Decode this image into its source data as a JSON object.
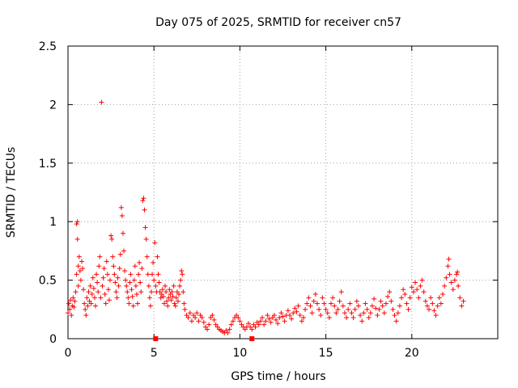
{
  "chart_data": {
    "type": "scatter",
    "title": "Day 075 of 2025, SRMTID for receiver cn57",
    "xlabel": "GPS time / hours",
    "ylabel": "SRMTID / TECUs",
    "xlim": [
      0,
      25
    ],
    "ylim": [
      0,
      2.5
    ],
    "xticks": [
      0,
      5,
      10,
      15,
      20
    ],
    "xtick_labels": [
      "0",
      "5",
      "10",
      "15",
      "20"
    ],
    "yticks": [
      0,
      0.5,
      1,
      1.5,
      2,
      2.5
    ],
    "ytick_labels": [
      "0",
      "0.5",
      "1",
      "1.5",
      "2",
      "2.5"
    ],
    "grid": true,
    "marker": "plus",
    "series_color": "#ff0000",
    "series": [
      {
        "name": "SRMTID",
        "points": [
          [
            0.0,
            0.22
          ],
          [
            0.05,
            0.3
          ],
          [
            0.1,
            0.25
          ],
          [
            0.15,
            0.33
          ],
          [
            0.2,
            0.2
          ],
          [
            0.25,
            0.28
          ],
          [
            0.3,
            0.35
          ],
          [
            0.35,
            0.27
          ],
          [
            0.4,
            0.32
          ],
          [
            0.45,
            0.4
          ],
          [
            0.5,
            0.55
          ],
          [
            0.5,
            0.98
          ],
          [
            0.55,
            1.0
          ],
          [
            0.55,
            0.85
          ],
          [
            0.6,
            0.62
          ],
          [
            0.6,
            0.45
          ],
          [
            0.65,
            0.7
          ],
          [
            0.7,
            0.58
          ],
          [
            0.75,
            0.5
          ],
          [
            0.8,
            0.66
          ],
          [
            0.85,
            0.6
          ],
          [
            0.9,
            0.42
          ],
          [
            0.95,
            0.3
          ],
          [
            1.0,
            0.25
          ],
          [
            1.05,
            0.2
          ],
          [
            1.1,
            0.35
          ],
          [
            1.15,
            0.28
          ],
          [
            1.2,
            0.4
          ],
          [
            1.25,
            0.32
          ],
          [
            1.3,
            0.45
          ],
          [
            1.35,
            0.3
          ],
          [
            1.4,
            0.38
          ],
          [
            1.45,
            0.52
          ],
          [
            1.5,
            0.43
          ],
          [
            1.55,
            0.35
          ],
          [
            1.6,
            0.28
          ],
          [
            1.65,
            0.55
          ],
          [
            1.7,
            0.48
          ],
          [
            1.75,
            0.4
          ],
          [
            1.8,
            0.62
          ],
          [
            1.85,
            0.7
          ],
          [
            1.9,
            0.35
          ],
          [
            1.95,
            2.02
          ],
          [
            2.0,
            0.45
          ],
          [
            2.05,
            0.52
          ],
          [
            2.1,
            0.6
          ],
          [
            2.15,
            0.38
          ],
          [
            2.2,
            0.3
          ],
          [
            2.25,
            0.66
          ],
          [
            2.3,
            0.55
          ],
          [
            2.35,
            0.42
          ],
          [
            2.4,
            0.33
          ],
          [
            2.45,
            0.5
          ],
          [
            2.5,
            0.88
          ],
          [
            2.55,
            0.85
          ],
          [
            2.6,
            0.7
          ],
          [
            2.65,
            0.62
          ],
          [
            2.7,
            0.55
          ],
          [
            2.75,
            0.48
          ],
          [
            2.8,
            0.4
          ],
          [
            2.85,
            0.35
          ],
          [
            2.9,
            0.52
          ],
          [
            2.95,
            0.45
          ],
          [
            3.0,
            0.6
          ],
          [
            3.05,
            0.72
          ],
          [
            3.1,
            1.12
          ],
          [
            3.15,
            1.05
          ],
          [
            3.2,
            0.9
          ],
          [
            3.25,
            0.75
          ],
          [
            3.3,
            0.58
          ],
          [
            3.35,
            0.5
          ],
          [
            3.4,
            0.45
          ],
          [
            3.45,
            0.4
          ],
          [
            3.5,
            0.35
          ],
          [
            3.55,
            0.3
          ],
          [
            3.6,
            0.48
          ],
          [
            3.65,
            0.55
          ],
          [
            3.7,
            0.42
          ],
          [
            3.75,
            0.36
          ],
          [
            3.8,
            0.28
          ],
          [
            3.85,
            0.5
          ],
          [
            3.9,
            0.62
          ],
          [
            3.95,
            0.45
          ],
          [
            4.0,
            0.38
          ],
          [
            4.05,
            0.3
          ],
          [
            4.1,
            0.55
          ],
          [
            4.15,
            0.65
          ],
          [
            4.2,
            0.48
          ],
          [
            4.25,
            0.4
          ],
          [
            4.3,
            0.6
          ],
          [
            4.35,
            1.18
          ],
          [
            4.4,
            1.2
          ],
          [
            4.45,
            1.1
          ],
          [
            4.5,
            0.95
          ],
          [
            4.55,
            0.85
          ],
          [
            4.6,
            0.7
          ],
          [
            4.65,
            0.55
          ],
          [
            4.7,
            0.45
          ],
          [
            4.75,
            0.35
          ],
          [
            4.8,
            0.28
          ],
          [
            4.85,
            0.4
          ],
          [
            4.9,
            0.55
          ],
          [
            4.95,
            0.65
          ],
          [
            5.0,
            0.5
          ],
          [
            5.05,
            0.82
          ],
          [
            5.1,
            0.45
          ],
          [
            5.15,
            0.4
          ],
          [
            5.2,
            0.7
          ],
          [
            5.25,
            0.55
          ],
          [
            5.3,
            0.48
          ],
          [
            5.35,
            0.4
          ],
          [
            5.4,
            0.35
          ],
          [
            5.45,
            0.38
          ],
          [
            5.5,
            0.42
          ],
          [
            5.55,
            0.36
          ],
          [
            5.6,
            0.3
          ],
          [
            5.65,
            0.45
          ],
          [
            5.7,
            0.4
          ],
          [
            5.75,
            0.32
          ],
          [
            5.8,
            0.28
          ],
          [
            5.85,
            0.35
          ],
          [
            5.9,
            0.42
          ],
          [
            5.95,
            0.38
          ],
          [
            6.0,
            0.33
          ],
          [
            6.05,
            0.4
          ],
          [
            6.1,
            0.36
          ],
          [
            6.15,
            0.45
          ],
          [
            6.2,
            0.3
          ],
          [
            6.25,
            0.28
          ],
          [
            6.3,
            0.35
          ],
          [
            6.35,
            0.4
          ],
          [
            6.4,
            0.32
          ],
          [
            6.45,
            0.38
          ],
          [
            6.5,
            0.45
          ],
          [
            6.55,
            0.5
          ],
          [
            6.6,
            0.58
          ],
          [
            6.65,
            0.55
          ],
          [
            6.7,
            0.4
          ],
          [
            6.75,
            0.3
          ],
          [
            6.8,
            0.25
          ],
          [
            6.9,
            0.2
          ],
          [
            7.0,
            0.18
          ],
          [
            7.1,
            0.22
          ],
          [
            7.2,
            0.15
          ],
          [
            7.3,
            0.2
          ],
          [
            7.4,
            0.18
          ],
          [
            7.5,
            0.22
          ],
          [
            7.6,
            0.15
          ],
          [
            7.7,
            0.2
          ],
          [
            7.8,
            0.18
          ],
          [
            7.9,
            0.14
          ],
          [
            8.0,
            0.1
          ],
          [
            8.1,
            0.08
          ],
          [
            8.2,
            0.12
          ],
          [
            8.3,
            0.18
          ],
          [
            8.4,
            0.2
          ],
          [
            8.5,
            0.16
          ],
          [
            8.6,
            0.12
          ],
          [
            8.7,
            0.1
          ],
          [
            8.8,
            0.08
          ],
          [
            8.9,
            0.07
          ],
          [
            9.0,
            0.06
          ],
          [
            9.1,
            0.05
          ],
          [
            9.2,
            0.07
          ],
          [
            9.3,
            0.05
          ],
          [
            9.4,
            0.08
          ],
          [
            9.5,
            0.12
          ],
          [
            9.6,
            0.15
          ],
          [
            9.7,
            0.18
          ],
          [
            9.8,
            0.2
          ],
          [
            9.9,
            0.18
          ],
          [
            10.0,
            0.15
          ],
          [
            10.1,
            0.12
          ],
          [
            10.2,
            0.1
          ],
          [
            10.3,
            0.08
          ],
          [
            10.4,
            0.1
          ],
          [
            10.5,
            0.13
          ],
          [
            10.6,
            0.1
          ],
          [
            10.7,
            0.08
          ],
          [
            10.8,
            0.12
          ],
          [
            10.9,
            0.1
          ],
          [
            11.0,
            0.14
          ],
          [
            11.1,
            0.12
          ],
          [
            11.2,
            0.15
          ],
          [
            11.3,
            0.18
          ],
          [
            11.4,
            0.12
          ],
          [
            11.5,
            0.15
          ],
          [
            11.6,
            0.2
          ],
          [
            11.7,
            0.17
          ],
          [
            11.8,
            0.14
          ],
          [
            11.9,
            0.18
          ],
          [
            12.0,
            0.2
          ],
          [
            12.1,
            0.16
          ],
          [
            12.2,
            0.13
          ],
          [
            12.3,
            0.18
          ],
          [
            12.4,
            0.22
          ],
          [
            12.5,
            0.19
          ],
          [
            12.6,
            0.15
          ],
          [
            12.7,
            0.2
          ],
          [
            12.8,
            0.24
          ],
          [
            12.9,
            0.2
          ],
          [
            13.0,
            0.17
          ],
          [
            13.1,
            0.22
          ],
          [
            13.2,
            0.26
          ],
          [
            13.3,
            0.23
          ],
          [
            13.4,
            0.28
          ],
          [
            13.5,
            0.2
          ],
          [
            13.6,
            0.15
          ],
          [
            13.7,
            0.18
          ],
          [
            13.8,
            0.25
          ],
          [
            13.9,
            0.3
          ],
          [
            14.0,
            0.35
          ],
          [
            14.1,
            0.28
          ],
          [
            14.2,
            0.22
          ],
          [
            14.3,
            0.32
          ],
          [
            14.4,
            0.38
          ],
          [
            14.5,
            0.3
          ],
          [
            14.6,
            0.25
          ],
          [
            14.7,
            0.2
          ],
          [
            14.8,
            0.35
          ],
          [
            14.9,
            0.3
          ],
          [
            15.0,
            0.25
          ],
          [
            15.1,
            0.22
          ],
          [
            15.2,
            0.18
          ],
          [
            15.3,
            0.3
          ],
          [
            15.4,
            0.35
          ],
          [
            15.5,
            0.28
          ],
          [
            15.6,
            0.22
          ],
          [
            15.7,
            0.25
          ],
          [
            15.8,
            0.32
          ],
          [
            15.9,
            0.4
          ],
          [
            16.0,
            0.28
          ],
          [
            16.1,
            0.22
          ],
          [
            16.2,
            0.18
          ],
          [
            16.3,
            0.25
          ],
          [
            16.4,
            0.3
          ],
          [
            16.5,
            0.22
          ],
          [
            16.6,
            0.18
          ],
          [
            16.7,
            0.25
          ],
          [
            16.8,
            0.32
          ],
          [
            16.9,
            0.28
          ],
          [
            17.0,
            0.2
          ],
          [
            17.1,
            0.15
          ],
          [
            17.2,
            0.22
          ],
          [
            17.3,
            0.3
          ],
          [
            17.4,
            0.25
          ],
          [
            17.5,
            0.18
          ],
          [
            17.6,
            0.22
          ],
          [
            17.7,
            0.28
          ],
          [
            17.8,
            0.34
          ],
          [
            17.9,
            0.26
          ],
          [
            18.0,
            0.2
          ],
          [
            18.1,
            0.25
          ],
          [
            18.2,
            0.32
          ],
          [
            18.3,
            0.28
          ],
          [
            18.4,
            0.22
          ],
          [
            18.5,
            0.3
          ],
          [
            18.6,
            0.36
          ],
          [
            18.7,
            0.4
          ],
          [
            18.8,
            0.32
          ],
          [
            18.9,
            0.25
          ],
          [
            19.0,
            0.2
          ],
          [
            19.1,
            0.15
          ],
          [
            19.2,
            0.22
          ],
          [
            19.3,
            0.28
          ],
          [
            19.4,
            0.35
          ],
          [
            19.5,
            0.42
          ],
          [
            19.6,
            0.38
          ],
          [
            19.7,
            0.3
          ],
          [
            19.8,
            0.25
          ],
          [
            19.9,
            0.35
          ],
          [
            20.0,
            0.44
          ],
          [
            20.1,
            0.4
          ],
          [
            20.2,
            0.48
          ],
          [
            20.3,
            0.42
          ],
          [
            20.4,
            0.35
          ],
          [
            20.5,
            0.45
          ],
          [
            20.6,
            0.5
          ],
          [
            20.7,
            0.4
          ],
          [
            20.8,
            0.32
          ],
          [
            20.9,
            0.28
          ],
          [
            21.0,
            0.25
          ],
          [
            21.1,
            0.35
          ],
          [
            21.2,
            0.3
          ],
          [
            21.3,
            0.24
          ],
          [
            21.4,
            0.2
          ],
          [
            21.5,
            0.28
          ],
          [
            21.6,
            0.35
          ],
          [
            21.7,
            0.3
          ],
          [
            21.8,
            0.38
          ],
          [
            21.9,
            0.45
          ],
          [
            22.0,
            0.52
          ],
          [
            22.1,
            0.62
          ],
          [
            22.15,
            0.68
          ],
          [
            22.2,
            0.55
          ],
          [
            22.3,
            0.48
          ],
          [
            22.4,
            0.42
          ],
          [
            22.5,
            0.5
          ],
          [
            22.6,
            0.55
          ],
          [
            22.65,
            0.57
          ],
          [
            22.7,
            0.45
          ],
          [
            22.8,
            0.35
          ],
          [
            22.9,
            0.28
          ],
          [
            23.0,
            0.32
          ]
        ]
      }
    ],
    "special_markers": [
      {
        "x": 5.1,
        "y": 0.0
      },
      {
        "x": 10.7,
        "y": 0.0
      }
    ]
  }
}
